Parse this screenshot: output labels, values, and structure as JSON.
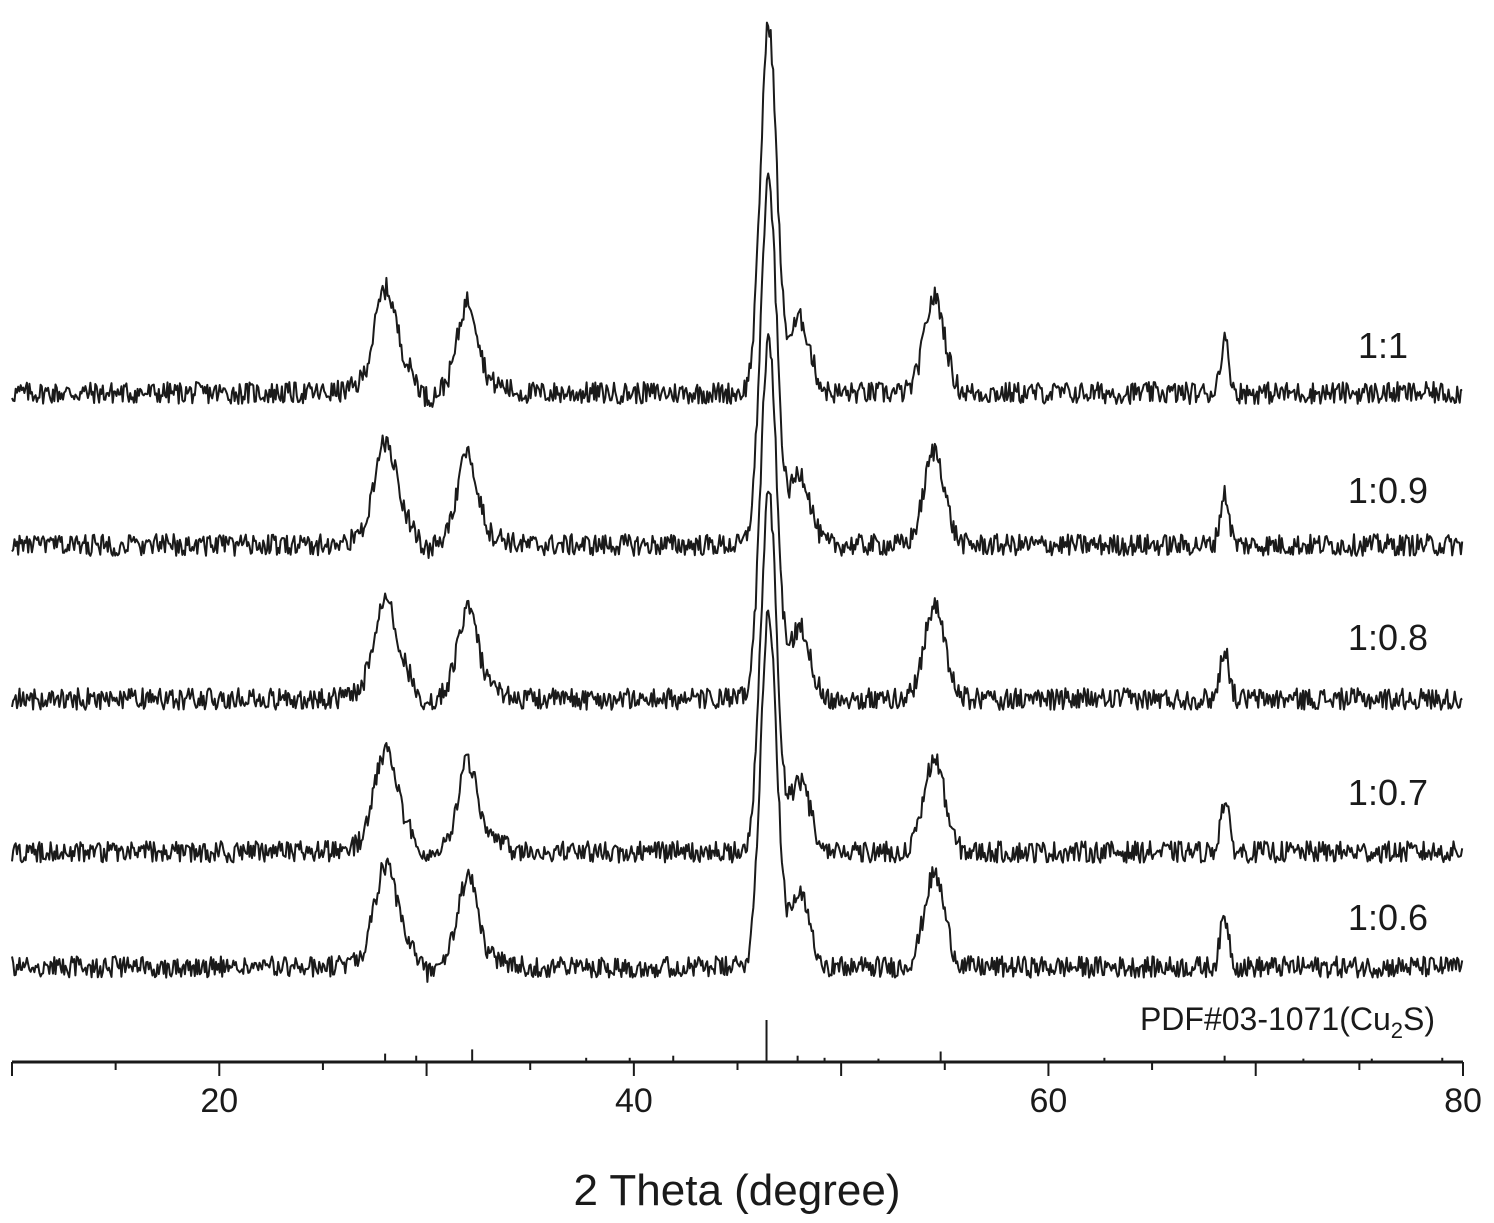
{
  "chart_data": {
    "type": "line",
    "xlabel": "2 Theta (degree)",
    "ylabel": "",
    "xlim": [
      10,
      80
    ],
    "x_ticks": [
      20,
      40,
      60,
      80
    ],
    "y_axis_shown": false,
    "grid": false,
    "colors": {
      "line": "#1a1a1a",
      "background": "#ffffff"
    },
    "peaks_2theta": [
      28.0,
      32.0,
      46.5,
      48.0,
      54.5,
      68.5
    ],
    "series": [
      {
        "name": "1:1",
        "peaks": [
          {
            "x": 28.0,
            "h": 0.22
          },
          {
            "x": 32.0,
            "h": 0.25
          },
          {
            "x": 46.5,
            "h": 1.0
          },
          {
            "x": 48.0,
            "h": 0.2
          },
          {
            "x": 54.5,
            "h": 0.26
          },
          {
            "x": 68.5,
            "h": 0.14
          }
        ]
      },
      {
        "name": "1:0.9",
        "peaks": [
          {
            "x": 28.0,
            "h": 0.22
          },
          {
            "x": 32.0,
            "h": 0.25
          },
          {
            "x": 46.5,
            "h": 1.0
          },
          {
            "x": 48.0,
            "h": 0.2
          },
          {
            "x": 54.5,
            "h": 0.26
          },
          {
            "x": 68.5,
            "h": 0.14
          }
        ]
      },
      {
        "name": "1:0.8",
        "peaks": [
          {
            "x": 28.0,
            "h": 0.22
          },
          {
            "x": 32.0,
            "h": 0.25
          },
          {
            "x": 46.5,
            "h": 1.0
          },
          {
            "x": 48.0,
            "h": 0.2
          },
          {
            "x": 54.5,
            "h": 0.26
          },
          {
            "x": 68.5,
            "h": 0.14
          }
        ]
      },
      {
        "name": "1:0.7",
        "peaks": [
          {
            "x": 28.0,
            "h": 0.22
          },
          {
            "x": 32.0,
            "h": 0.25
          },
          {
            "x": 46.5,
            "h": 1.0
          },
          {
            "x": 48.0,
            "h": 0.2
          },
          {
            "x": 54.5,
            "h": 0.26
          },
          {
            "x": 68.5,
            "h": 0.14
          }
        ]
      },
      {
        "name": "1:0.6",
        "peaks": [
          {
            "x": 28.0,
            "h": 0.22
          },
          {
            "x": 32.0,
            "h": 0.25
          },
          {
            "x": 46.5,
            "h": 1.0
          },
          {
            "x": 48.0,
            "h": 0.2
          },
          {
            "x": 54.5,
            "h": 0.26
          },
          {
            "x": 68.5,
            "h": 0.14
          }
        ]
      }
    ],
    "reference": {
      "label_main": "PDF#03-1071(Cu",
      "label_sub": "2",
      "label_end": "S)",
      "lines": [
        {
          "x": 28.0,
          "h": 0.2
        },
        {
          "x": 29.5,
          "h": 0.15
        },
        {
          "x": 32.2,
          "h": 0.3
        },
        {
          "x": 37.7,
          "h": 0.1
        },
        {
          "x": 39.8,
          "h": 0.1
        },
        {
          "x": 41.9,
          "h": 0.15
        },
        {
          "x": 46.4,
          "h": 1.0
        },
        {
          "x": 47.9,
          "h": 0.15
        },
        {
          "x": 49.2,
          "h": 0.1
        },
        {
          "x": 51.8,
          "h": 0.08
        },
        {
          "x": 54.8,
          "h": 0.25
        },
        {
          "x": 62.7,
          "h": 0.1
        },
        {
          "x": 68.5,
          "h": 0.15
        },
        {
          "x": 72.3,
          "h": 0.08
        },
        {
          "x": 75.6,
          "h": 0.08
        },
        {
          "x": 79.0,
          "h": 0.1
        }
      ]
    }
  }
}
